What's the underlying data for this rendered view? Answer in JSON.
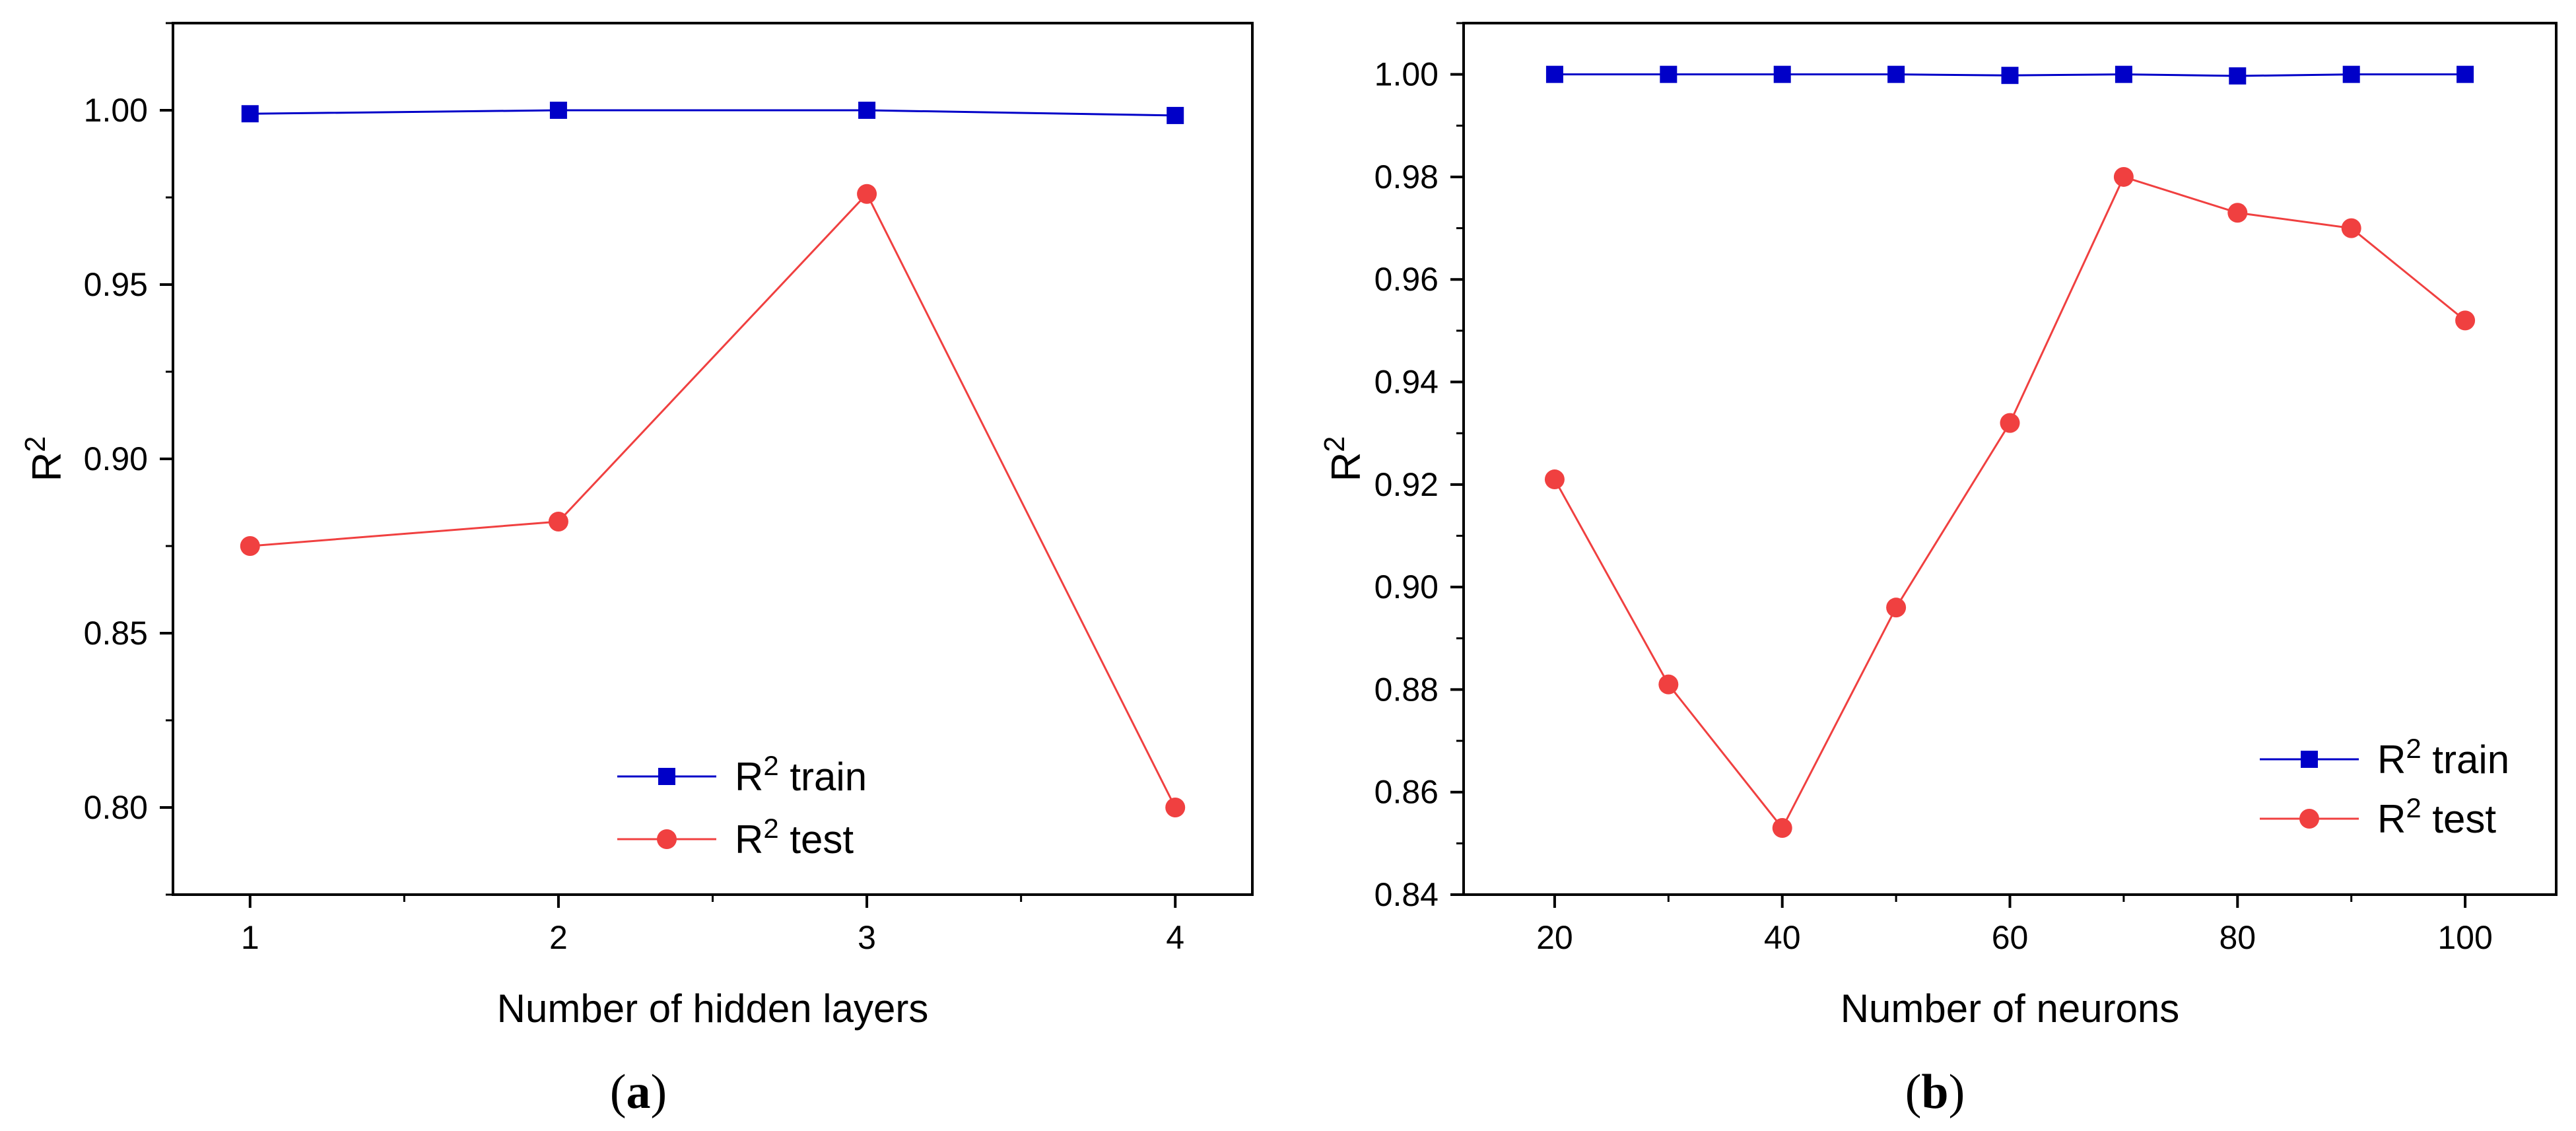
{
  "colors": {
    "train": "#0000C8",
    "test": "#F04040",
    "axis": "#000000",
    "background": "#FFFFFF"
  },
  "chart_data": [
    {
      "type": "line",
      "panel_label": "a",
      "x": [
        1,
        2,
        3,
        4
      ],
      "xlim": [
        0.75,
        4.25
      ],
      "ylim": [
        0.775,
        1.025
      ],
      "xticks": [
        "1",
        "2",
        "3",
        "4"
      ],
      "yticks": [
        "0.80",
        "0.85",
        "0.90",
        "0.95",
        "1.00"
      ],
      "xlabel": "Number of hidden layers",
      "ylabel": "R",
      "ylabel_sup": "2",
      "legend_position": "bottom-right",
      "series": [
        {
          "name": "R",
          "name_sup": "2",
          "name_suffix": " train",
          "marker": "square",
          "color": "#0000C8",
          "values": [
            0.999,
            1.0,
            1.0,
            0.9985
          ]
        },
        {
          "name": "R",
          "name_sup": "2",
          "name_suffix": " test",
          "marker": "circle",
          "color": "#F04040",
          "values": [
            0.875,
            0.882,
            0.976,
            0.8
          ]
        }
      ]
    },
    {
      "type": "line",
      "panel_label": "b",
      "x": [
        20,
        30,
        40,
        50,
        60,
        70,
        80,
        90,
        100
      ],
      "xlim": [
        12,
        108
      ],
      "ylim": [
        0.84,
        1.01
      ],
      "xticks": [
        "20",
        "40",
        "60",
        "80",
        "100"
      ],
      "xtick_values": [
        20,
        40,
        60,
        80,
        100
      ],
      "yticks": [
        "0.84",
        "0.86",
        "0.88",
        "0.90",
        "0.92",
        "0.94",
        "0.96",
        "0.98",
        "1.00"
      ],
      "xlabel": "Number of neurons",
      "ylabel": "R",
      "ylabel_sup": "2",
      "legend_position": "bottom-right",
      "series": [
        {
          "name": "R",
          "name_sup": "2",
          "name_suffix": " train",
          "marker": "square",
          "color": "#0000C8",
          "values": [
            1.0,
            1.0,
            1.0,
            1.0,
            0.9998,
            1.0,
            0.9997,
            1.0,
            1.0
          ]
        },
        {
          "name": "R",
          "name_sup": "2",
          "name_suffix": " test",
          "marker": "circle",
          "color": "#F04040",
          "values": [
            0.921,
            0.881,
            0.853,
            0.896,
            0.932,
            0.98,
            0.973,
            0.97,
            0.952
          ]
        }
      ]
    }
  ]
}
